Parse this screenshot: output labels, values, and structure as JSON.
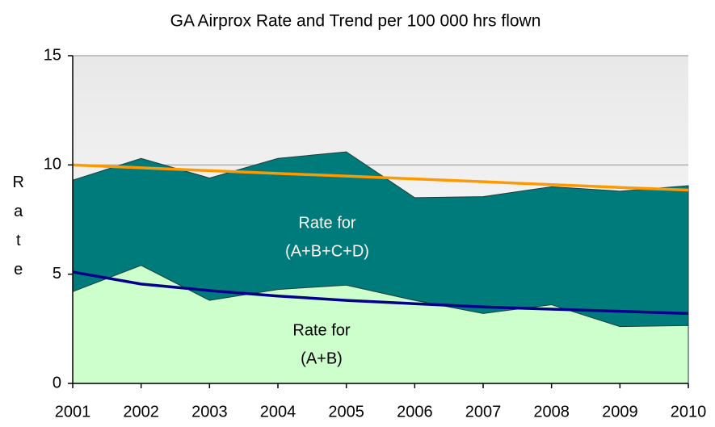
{
  "chart_data": {
    "type": "area",
    "title": "GA Airprox Rate and Trend per 100 000 hrs flown",
    "y_label": "Rate",
    "categories": [
      "2001",
      "2002",
      "2003",
      "2004",
      "2005",
      "2006",
      "2007",
      "2008",
      "2009",
      "2010"
    ],
    "series": [
      {
        "kind": "area",
        "color": "#007b7b",
        "values": [
          9.3,
          10.3,
          9.4,
          10.3,
          10.6,
          8.5,
          8.55,
          9.0,
          8.8,
          9.05
        ]
      },
      {
        "kind": "area",
        "color": "#ccffcc",
        "values": [
          4.2,
          5.4,
          3.8,
          4.3,
          4.5,
          3.8,
          3.2,
          3.6,
          2.6,
          2.65
        ]
      },
      {
        "kind": "line",
        "color": "#ff9900",
        "values": [
          10.0,
          9.87,
          9.74,
          9.61,
          9.49,
          9.36,
          9.23,
          9.1,
          8.97,
          8.85
        ]
      },
      {
        "kind": "line",
        "color": "#00008b",
        "values": [
          5.1,
          4.55,
          4.25,
          4.0,
          3.8,
          3.65,
          3.5,
          3.4,
          3.3,
          3.2
        ]
      }
    ],
    "annotations": [
      {
        "lines": [
          "Rate for",
          "(A+B+C+D)"
        ]
      },
      {
        "lines": [
          "Rate for",
          "(A+B)"
        ]
      }
    ],
    "ylim": [
      0,
      15
    ],
    "yticks": [
      0,
      5,
      10,
      15
    ],
    "grid": true
  }
}
